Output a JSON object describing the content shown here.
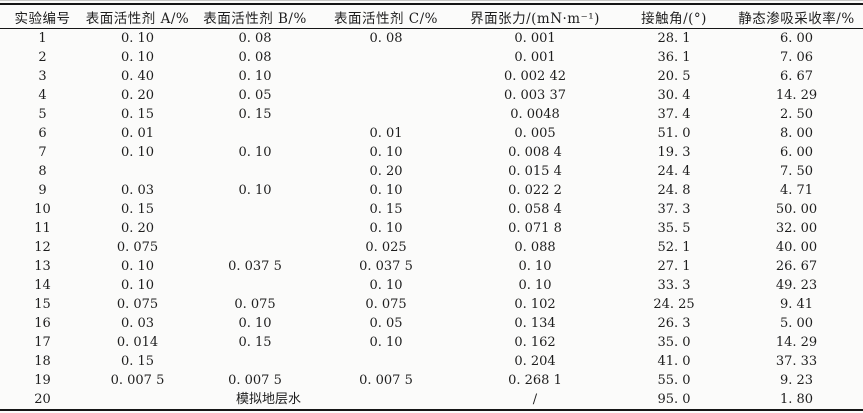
{
  "colors": {
    "background": "#fbfbfa",
    "text": "#1e1e1e",
    "rule": "#161616"
  },
  "table": {
    "columns": [
      "实验编号",
      "表面活性剂 A/%",
      "表面活性剂 B/%",
      "表面活性剂 C/%",
      "界面张力/(mN·m⁻¹)",
      "接触角/(°)",
      "静态渗吸采收率/%"
    ],
    "rows": [
      [
        "1",
        "0. 10",
        "0. 08",
        "0. 08",
        "0. 001",
        "28. 1",
        "6. 00"
      ],
      [
        "2",
        "0. 10",
        "0. 08",
        "",
        "0. 001",
        "36. 1",
        "7. 06"
      ],
      [
        "3",
        "0. 40",
        "0. 10",
        "",
        "0. 002 42",
        "20. 5",
        "6. 67"
      ],
      [
        "4",
        "0. 20",
        "0. 05",
        "",
        "0. 003 37",
        "30. 4",
        "14. 29"
      ],
      [
        "5",
        "0. 15",
        "0. 15",
        "",
        "0. 0048",
        "37. 4",
        "2. 50"
      ],
      [
        "6",
        "0. 01",
        "",
        "0. 01",
        "0. 005",
        "51. 0",
        "8. 00"
      ],
      [
        "7",
        "0. 10",
        "0. 10",
        "0. 10",
        "0. 008 4",
        "19. 3",
        "6. 00"
      ],
      [
        "8",
        "",
        "",
        "0. 20",
        "0. 015 4",
        "24. 4",
        "7. 50"
      ],
      [
        "9",
        "0. 03",
        "0. 10",
        "0. 10",
        "0. 022 2",
        "24. 8",
        "4. 71"
      ],
      [
        "10",
        "0. 15",
        "",
        "0. 15",
        "0. 058 4",
        "37. 3",
        "50. 00"
      ],
      [
        "11",
        "0. 20",
        "",
        "0. 10",
        "0. 071 8",
        "35. 5",
        "32. 00"
      ],
      [
        "12",
        "0. 075",
        "",
        "0. 025",
        "0. 088",
        "52. 1",
        "40. 00"
      ],
      [
        "13",
        "0. 10",
        "0. 037 5",
        "0. 037 5",
        "0. 10",
        "27. 1",
        "26. 67"
      ],
      [
        "14",
        "0. 10",
        "",
        "0. 10",
        "0. 10",
        "33. 3",
        "49. 23"
      ],
      [
        "15",
        "0. 075",
        "0. 075",
        "0. 075",
        "0. 102",
        "24. 25",
        "9. 41"
      ],
      [
        "16",
        "0. 03",
        "0. 10",
        "0. 05",
        "0. 134",
        "26. 3",
        "5. 00"
      ],
      [
        "17",
        "0. 014",
        "0. 15",
        "0. 10",
        "0. 162",
        "35. 0",
        "14. 29"
      ],
      [
        "18",
        "0. 15",
        "",
        "",
        "0. 204",
        "41. 0",
        "37. 33"
      ],
      [
        "19",
        "0. 007 5",
        "0. 007 5",
        "0. 007 5",
        "0. 268 1",
        "55. 0",
        "9. 23"
      ],
      [
        "20",
        {
          "text": "模拟地层水",
          "colspan": 3
        },
        "/",
        "95. 0",
        "1. 80"
      ]
    ]
  }
}
